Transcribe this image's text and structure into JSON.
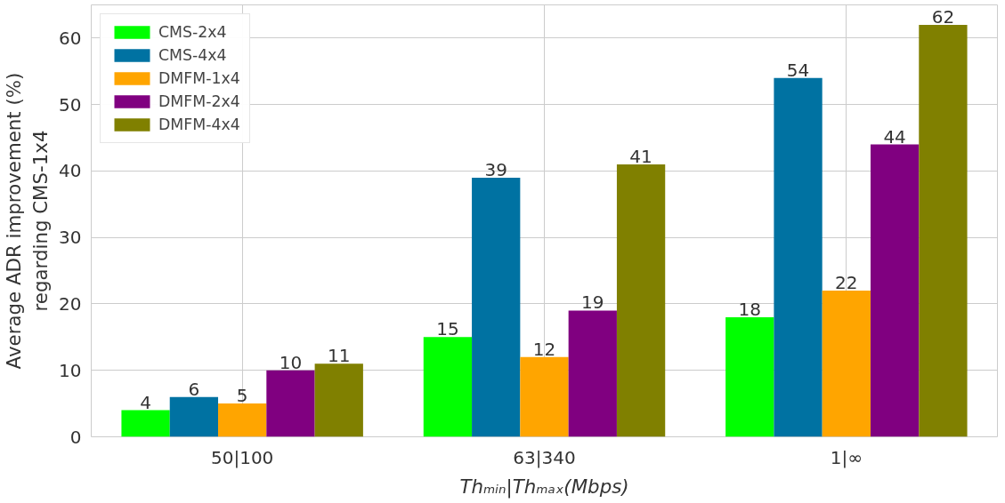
{
  "chart_data": {
    "type": "bar",
    "xlabel": "Thₘᵢₙ|Thₘₐₓ(Mbps)",
    "ylabel": "Average ADR improvement (%)\nregarding CMS-1x4",
    "categories": [
      "50|100",
      "63|340",
      "1|∞"
    ],
    "series": [
      {
        "name": "CMS-2x4",
        "color": "#00ff00",
        "values": [
          4,
          15,
          18
        ]
      },
      {
        "name": "CMS-4x4",
        "color": "#0072a2",
        "values": [
          6,
          39,
          54
        ]
      },
      {
        "name": "DMFM-1x4",
        "color": "#ffa500",
        "values": [
          5,
          12,
          22
        ]
      },
      {
        "name": "DMFM-2x4",
        "color": "#800080",
        "values": [
          10,
          19,
          44
        ]
      },
      {
        "name": "DMFM-4x4",
        "color": "#808000",
        "values": [
          11,
          41,
          62
        ]
      }
    ],
    "ylim": [
      0,
      65
    ],
    "yticks": [
      0,
      10,
      20,
      30,
      40,
      50,
      60
    ],
    "grid": true,
    "legend": "top left",
    "data_labels": true
  }
}
